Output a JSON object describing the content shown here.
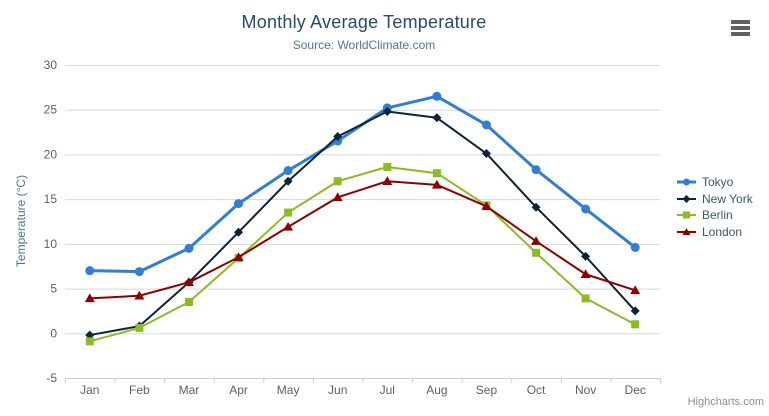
{
  "title": "Monthly Average Temperature",
  "subtitle": "Source: WorldClimate.com",
  "credits": "Highcharts.com",
  "menu": {
    "icon": "hamburger-icon"
  },
  "colors": {
    "background": "#ffffff",
    "title_text": "#274b6d",
    "subtitle_text": "#4d759e",
    "axis_label": "#606060",
    "axis_line": "#c0d0e0",
    "gridline": "#d8d8d8",
    "y_axis_title": "#4d759e",
    "legend_text": "#3e576f",
    "credits_text": "#8f8f8f",
    "menu_icon": "#606060"
  },
  "chart_data": {
    "type": "line",
    "title": "Monthly Average Temperature",
    "subtitle": "Source: WorldClimate.com",
    "categories": [
      "Jan",
      "Feb",
      "Mar",
      "Apr",
      "May",
      "Jun",
      "Jul",
      "Aug",
      "Sep",
      "Oct",
      "Nov",
      "Dec"
    ],
    "series": [
      {
        "name": "Tokyo",
        "color": "#2f7ed8",
        "marker": "circle",
        "line_width": 3,
        "marker_radius": 5,
        "values": [
          7.0,
          6.9,
          9.5,
          14.5,
          18.2,
          21.5,
          25.2,
          26.5,
          23.3,
          18.3,
          13.9,
          9.6
        ]
      },
      {
        "name": "New York",
        "color": "#0d233a",
        "marker": "diamond",
        "line_width": 2,
        "marker_radius": 4.5,
        "values": [
          -0.2,
          0.8,
          5.7,
          11.3,
          17.0,
          22.0,
          24.8,
          24.1,
          20.1,
          14.1,
          8.6,
          2.5
        ]
      },
      {
        "name": "Berlin",
        "color": "#8bbc21",
        "marker": "square",
        "line_width": 2,
        "marker_radius": 4.5,
        "values": [
          -0.9,
          0.6,
          3.5,
          8.4,
          13.5,
          17.0,
          18.6,
          17.9,
          14.3,
          9.0,
          3.9,
          1.0
        ]
      },
      {
        "name": "London",
        "color": "#910000",
        "marker": "triangle",
        "line_width": 2,
        "marker_radius": 5,
        "values": [
          3.9,
          4.2,
          5.7,
          8.5,
          11.9,
          15.2,
          17.0,
          16.6,
          14.2,
          10.3,
          6.6,
          4.8
        ]
      }
    ],
    "xlabel": "",
    "ylabel": "Temperature (°C)",
    "ylim": [
      -5,
      30
    ],
    "ytick_interval": 5,
    "yticks": [
      -5,
      0,
      5,
      10,
      15,
      20,
      25,
      30
    ],
    "grid": true,
    "legend_position": "right"
  }
}
